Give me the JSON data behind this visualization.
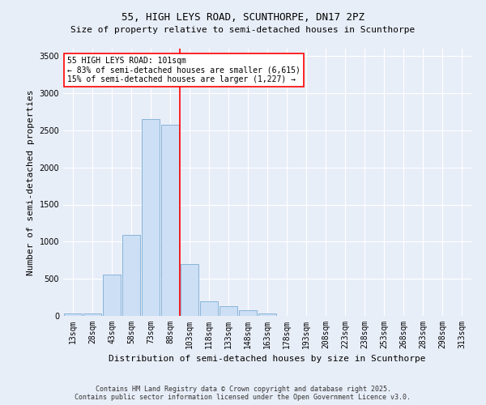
{
  "title": "55, HIGH LEYS ROAD, SCUNTHORPE, DN17 2PZ",
  "subtitle": "Size of property relative to semi-detached houses in Scunthorpe",
  "xlabel": "Distribution of semi-detached houses by size in Scunthorpe",
  "ylabel": "Number of semi-detached properties",
  "categories": [
    "13sqm",
    "28sqm",
    "43sqm",
    "58sqm",
    "73sqm",
    "88sqm",
    "103sqm",
    "118sqm",
    "133sqm",
    "148sqm",
    "163sqm",
    "178sqm",
    "193sqm",
    "208sqm",
    "223sqm",
    "238sqm",
    "253sqm",
    "268sqm",
    "283sqm",
    "298sqm",
    "313sqm"
  ],
  "values": [
    30,
    30,
    560,
    1090,
    2650,
    2570,
    700,
    200,
    130,
    80,
    30,
    5,
    2,
    1,
    0,
    0,
    0,
    0,
    0,
    0,
    0
  ],
  "bar_color": "#ccdff5",
  "bar_edge_color": "#88b4d8",
  "red_line_x": 5.5,
  "property_label": "55 HIGH LEYS ROAD: 101sqm",
  "annotation_line1": "← 83% of semi-detached houses are smaller (6,615)",
  "annotation_line2": "15% of semi-detached houses are larger (1,227) →",
  "ylim": [
    0,
    3600
  ],
  "yticks": [
    0,
    500,
    1000,
    1500,
    2000,
    2500,
    3000,
    3500
  ],
  "bg_color": "#e8eef8",
  "plot_bg_color": "#e8eef8",
  "footer_line1": "Contains HM Land Registry data © Crown copyright and database right 2025.",
  "footer_line2": "Contains public sector information licensed under the Open Government Licence v3.0.",
  "title_fontsize": 9,
  "subtitle_fontsize": 8,
  "ylabel_fontsize": 8,
  "xlabel_fontsize": 8,
  "tick_fontsize": 7,
  "footer_fontsize": 6
}
